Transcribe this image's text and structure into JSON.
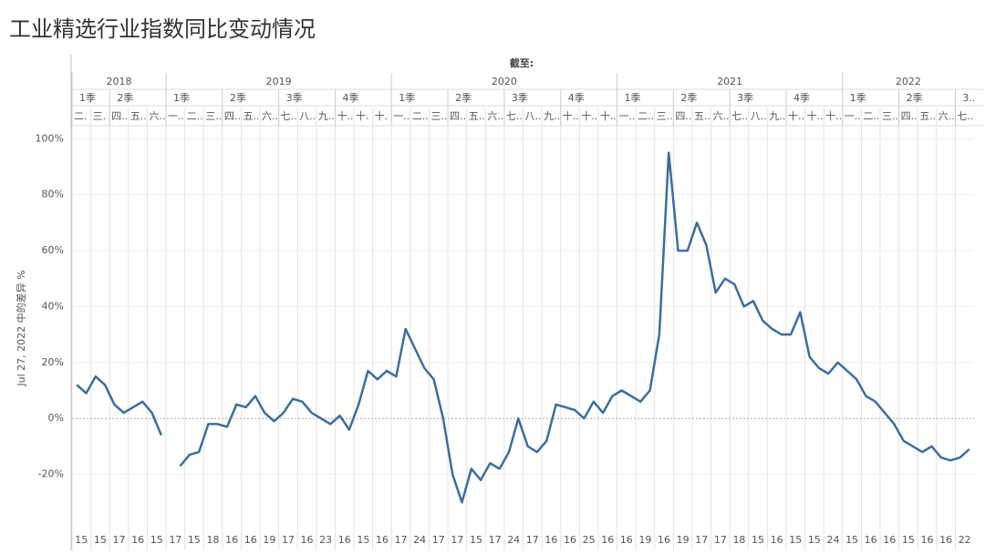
{
  "header": {
    "title": "工业精选行业指数同比变动情况",
    "as_of": "截至:"
  },
  "columns": [
    {
      "label": "2018",
      "quarters": [
        {
          "label": "1季",
          "months": [
            {
              "label": "二.",
              "day": "15"
            },
            {
              "label": "三.",
              "day": "15"
            }
          ]
        },
        {
          "label": "2季",
          "months": [
            {
              "label": "四..",
              "day": "17"
            },
            {
              "label": "五..",
              "day": "16"
            },
            {
              "label": "六..",
              "day": "15"
            }
          ]
        }
      ]
    },
    {
      "label": "2019",
      "quarters": [
        {
          "label": "1季",
          "months": [
            {
              "label": "一..",
              "day": "17"
            },
            {
              "label": "二..",
              "day": "15"
            },
            {
              "label": "三..",
              "day": "18"
            }
          ]
        },
        {
          "label": "2季",
          "months": [
            {
              "label": "四..",
              "day": "16"
            },
            {
              "label": "五..",
              "day": "16"
            },
            {
              "label": "六..",
              "day": "19"
            }
          ]
        },
        {
          "label": "3季",
          "months": [
            {
              "label": "七..",
              "day": "17"
            },
            {
              "label": "八..",
              "day": "16"
            },
            {
              "label": "九..",
              "day": "23"
            }
          ]
        },
        {
          "label": "4季",
          "months": [
            {
              "label": "十..",
              "day": "16"
            },
            {
              "label": "十.",
              "day": "15"
            },
            {
              "label": "十.",
              "day": "16"
            }
          ]
        }
      ]
    },
    {
      "label": "2020",
      "quarters": [
        {
          "label": "1季",
          "months": [
            {
              "label": "一..",
              "day": "17"
            },
            {
              "label": "二..",
              "day": "24"
            },
            {
              "label": "三..",
              "day": "17"
            }
          ]
        },
        {
          "label": "2季",
          "months": [
            {
              "label": "四..",
              "day": "17"
            },
            {
              "label": "五..",
              "day": "15"
            },
            {
              "label": "六..",
              "day": "17"
            }
          ]
        },
        {
          "label": "3季",
          "months": [
            {
              "label": "七..",
              "day": "24"
            },
            {
              "label": "八..",
              "day": "17"
            },
            {
              "label": "九..",
              "day": "16"
            }
          ]
        },
        {
          "label": "4季",
          "months": [
            {
              "label": "十..",
              "day": "16"
            },
            {
              "label": "十..",
              "day": "25"
            },
            {
              "label": "十..",
              "day": "16"
            }
          ]
        }
      ]
    },
    {
      "label": "2021",
      "quarters": [
        {
          "label": "1季",
          "months": [
            {
              "label": "一..",
              "day": "16"
            },
            {
              "label": "二..",
              "day": "19"
            },
            {
              "label": "三..",
              "day": "16"
            }
          ]
        },
        {
          "label": "2季",
          "months": [
            {
              "label": "四..",
              "day": "19"
            },
            {
              "label": "五..",
              "day": "17"
            },
            {
              "label": "六..",
              "day": "17"
            }
          ]
        },
        {
          "label": "3季",
          "months": [
            {
              "label": "七..",
              "day": "18"
            },
            {
              "label": "八..",
              "day": "15"
            },
            {
              "label": "九..",
              "day": "16"
            }
          ]
        },
        {
          "label": "4季",
          "months": [
            {
              "label": "十..",
              "day": "15"
            },
            {
              "label": "十..",
              "day": "15"
            },
            {
              "label": "十..",
              "day": "24"
            }
          ]
        }
      ]
    },
    {
      "label": "2022",
      "quarters": [
        {
          "label": "1季",
          "months": [
            {
              "label": "一..",
              "day": "15"
            },
            {
              "label": "二..",
              "day": "16"
            },
            {
              "label": "三..",
              "day": "16"
            }
          ]
        },
        {
          "label": "2季",
          "months": [
            {
              "label": "四..",
              "day": "15"
            },
            {
              "label": "五..",
              "day": "16"
            },
            {
              "label": "六..",
              "day": "16"
            }
          ]
        },
        {
          "label": "3..",
          "months": [
            {
              "label": "七..",
              "day": "22"
            }
          ]
        }
      ]
    }
  ],
  "chart_data": {
    "type": "line",
    "y_label": "Jul 27, 2022 中的差异 %",
    "color": "#3b6e9e",
    "ylim": [
      -40,
      104
    ],
    "yticks": [
      {
        "value": -20,
        "label": "-20%"
      },
      {
        "value": 0,
        "label": "0%"
      },
      {
        "value": 20,
        "label": "20%"
      },
      {
        "value": 40,
        "label": "40%"
      },
      {
        "value": 60,
        "label": "60%"
      },
      {
        "value": 80,
        "label": "80%"
      },
      {
        "value": 100,
        "label": "100%"
      }
    ],
    "values": [
      12,
      9,
      15,
      12,
      5,
      2,
      4,
      6,
      2,
      -6,
      null,
      -17,
      -13,
      -12,
      -2,
      -2,
      -3,
      5,
      4,
      8,
      2,
      -1,
      2,
      7,
      6,
      2,
      0,
      -2,
      1,
      -4,
      5,
      17,
      14,
      17,
      15,
      32,
      25,
      18,
      14,
      0,
      -20,
      -30,
      -18,
      -22,
      -16,
      -18,
      -12,
      0,
      -10,
      -12,
      -8,
      5,
      4,
      3,
      0,
      6,
      2,
      8,
      10,
      8,
      6,
      10,
      30,
      95,
      60,
      60,
      70,
      62,
      45,
      50,
      48,
      40,
      42,
      35,
      32,
      30,
      30,
      38,
      22,
      18,
      16,
      20,
      17,
      14,
      8,
      6,
      2,
      -2,
      -8,
      -10,
      -12,
      -10,
      -14,
      -15,
      -14,
      -11
    ]
  }
}
